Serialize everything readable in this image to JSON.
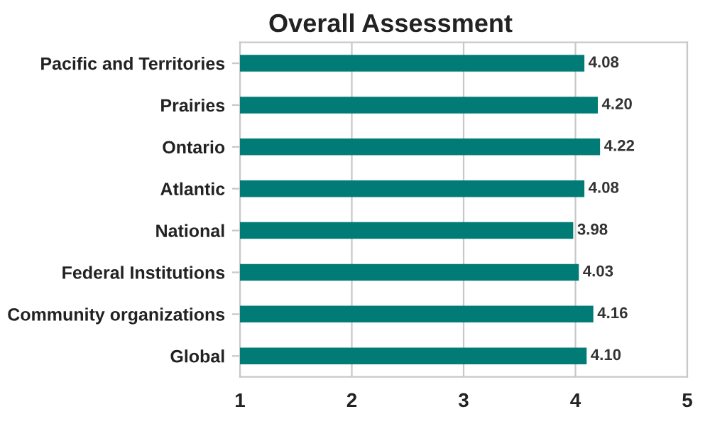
{
  "chart_data": {
    "type": "bar",
    "orientation": "horizontal",
    "title": "Overall Assessment",
    "categories": [
      "Pacific and Territories",
      "Prairies",
      "Ontario",
      "Atlantic",
      "National",
      "Federal Institutions",
      "Community organizations",
      "Global"
    ],
    "values": [
      4.08,
      4.2,
      4.22,
      4.08,
      3.98,
      4.03,
      4.16,
      4.1
    ],
    "value_labels": [
      "4.08",
      "4.20",
      "4.22",
      "4.08",
      "3.98",
      "4.03",
      "4.16",
      "4.10"
    ],
    "color": "#007b76",
    "xlim": [
      1,
      5
    ],
    "xticks": [
      1,
      2,
      3,
      4,
      5
    ],
    "grid": "x",
    "legend": false
  }
}
